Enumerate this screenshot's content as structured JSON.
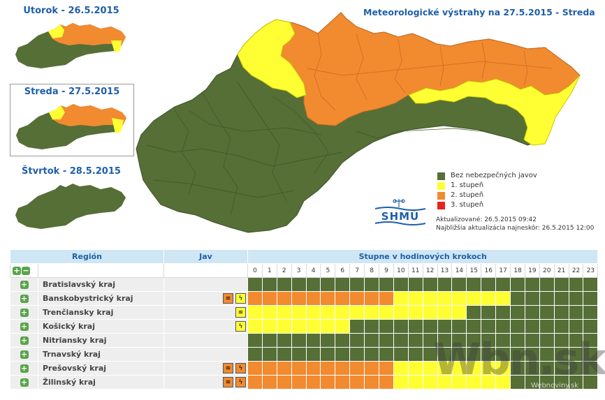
{
  "main_title": "Meteorologické výstrahy na 27.5.2015 - Streda",
  "days": [
    {
      "label": "Utorok - 26.5.2015"
    },
    {
      "label": "Streda - 27.5.2015"
    },
    {
      "label": "Štvrtok - 28.5.2015"
    }
  ],
  "colors": {
    "green": "#556f37",
    "yellow": "#ffff33",
    "orange": "#f28a30",
    "red": "#e8231e",
    "blue": "#1f5fa8"
  },
  "legend": [
    {
      "label": "Bez nebezpečných javov",
      "color": "#556f37"
    },
    {
      "label": "1. stupeň",
      "color": "#ffff33"
    },
    {
      "label": "2. stupeň",
      "color": "#f28a30"
    },
    {
      "label": "3. stupeň",
      "color": "#e8231e"
    }
  ],
  "updated": "Aktualizované: 26.5.2015 09:42",
  "next_update": "Najbližšia aktualizácia najneskôr: 26.5.2015 12:00",
  "logo_text": "SHMÚ",
  "table": {
    "col_region": "Región",
    "col_jav": "Jav",
    "col_steps": "Stupne v hodinových krokoch",
    "hours": [
      "0",
      "1",
      "2",
      "3",
      "4",
      "5",
      "6",
      "7",
      "8",
      "9",
      "10",
      "11",
      "12",
      "13",
      "14",
      "15",
      "16",
      "17",
      "18",
      "19",
      "20",
      "21",
      "22",
      "23"
    ],
    "rows": [
      {
        "name": "Bratislavský kraj",
        "icons": [],
        "cells": "GGGGGGGGGGGGGGGGGGGGGGGG"
      },
      {
        "name": "Banskobystrický kraj",
        "icons": [
          {
            "type": "wind-icon",
            "level": "orange"
          },
          {
            "type": "storm-icon",
            "level": "yellow"
          }
        ],
        "cells": "OOOOOOOOOOYYYYYYYYGGGGGG"
      },
      {
        "name": "Trenčiansky kraj",
        "icons": [
          {
            "type": "wind-icon",
            "level": "yellow"
          }
        ],
        "cells": "YYYYYYYYYYYYYYYGGGGGGGGG"
      },
      {
        "name": "Košický kraj",
        "icons": [
          {
            "type": "storm-icon",
            "level": "yellow"
          }
        ],
        "cells": "YYYYYYYGGGGGGGGGGGGGGGGG"
      },
      {
        "name": "Nitriansky kraj",
        "icons": [],
        "cells": "GGGGGGGGGGGGGGGGGGGGGGGG"
      },
      {
        "name": "Trnavský kraj",
        "icons": [],
        "cells": "GGGGGGGGGGGGGGGGGGGGGGGG"
      },
      {
        "name": "Prešovský kraj",
        "icons": [
          {
            "type": "wind-icon",
            "level": "orange"
          },
          {
            "type": "storm-icon",
            "level": "orange"
          }
        ],
        "cells": "OOOOOOOOOOYYYYYYYYGGGGGG"
      },
      {
        "name": "Žilinský kraj",
        "icons": [
          {
            "type": "wind-icon",
            "level": "orange"
          },
          {
            "type": "storm-icon",
            "level": "orange"
          }
        ],
        "cells": "OOOOOOOOOOYYYYYYYYGGGGGG"
      }
    ]
  },
  "watermark": "Wbn.sk",
  "watermark_small": "Webnoviny.sk"
}
